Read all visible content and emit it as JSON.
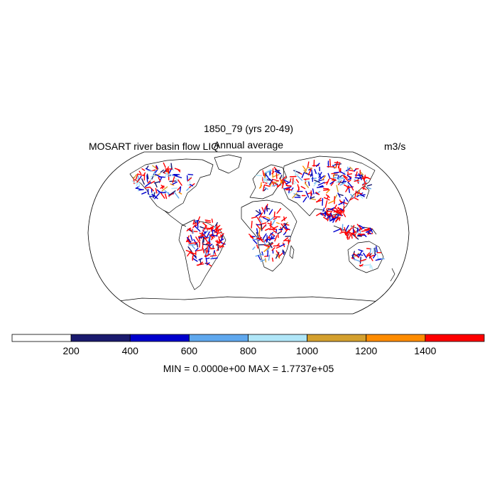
{
  "title": {
    "case": "1850_79 (yrs 20-49)",
    "variable": "MOSART river basin flow LIQ",
    "period": "Annual average",
    "units": "m3/s"
  },
  "map": {
    "projection": "robinson",
    "region": "global",
    "coastlines": true,
    "field": "river flow",
    "range": [
      0,
      177370
    ]
  },
  "colorbar": {
    "orientation": "horizontal",
    "position": "bottom",
    "levels": [
      200,
      400,
      600,
      800,
      1000,
      1200,
      1400
    ],
    "colors": [
      "#ffffff",
      "#1a1a6e",
      "#0000cd",
      "#5fa8ee",
      "#b0e6f8",
      "#d4a02e",
      "#ff8c00",
      "#ff0000"
    ],
    "tick_labels": [
      "200",
      "400",
      "600",
      "800",
      "1000",
      "1200",
      "1400"
    ]
  },
  "stats": {
    "min_max_text": "MIN = 0.0000e+00 MAX = 1.7737e+05"
  }
}
